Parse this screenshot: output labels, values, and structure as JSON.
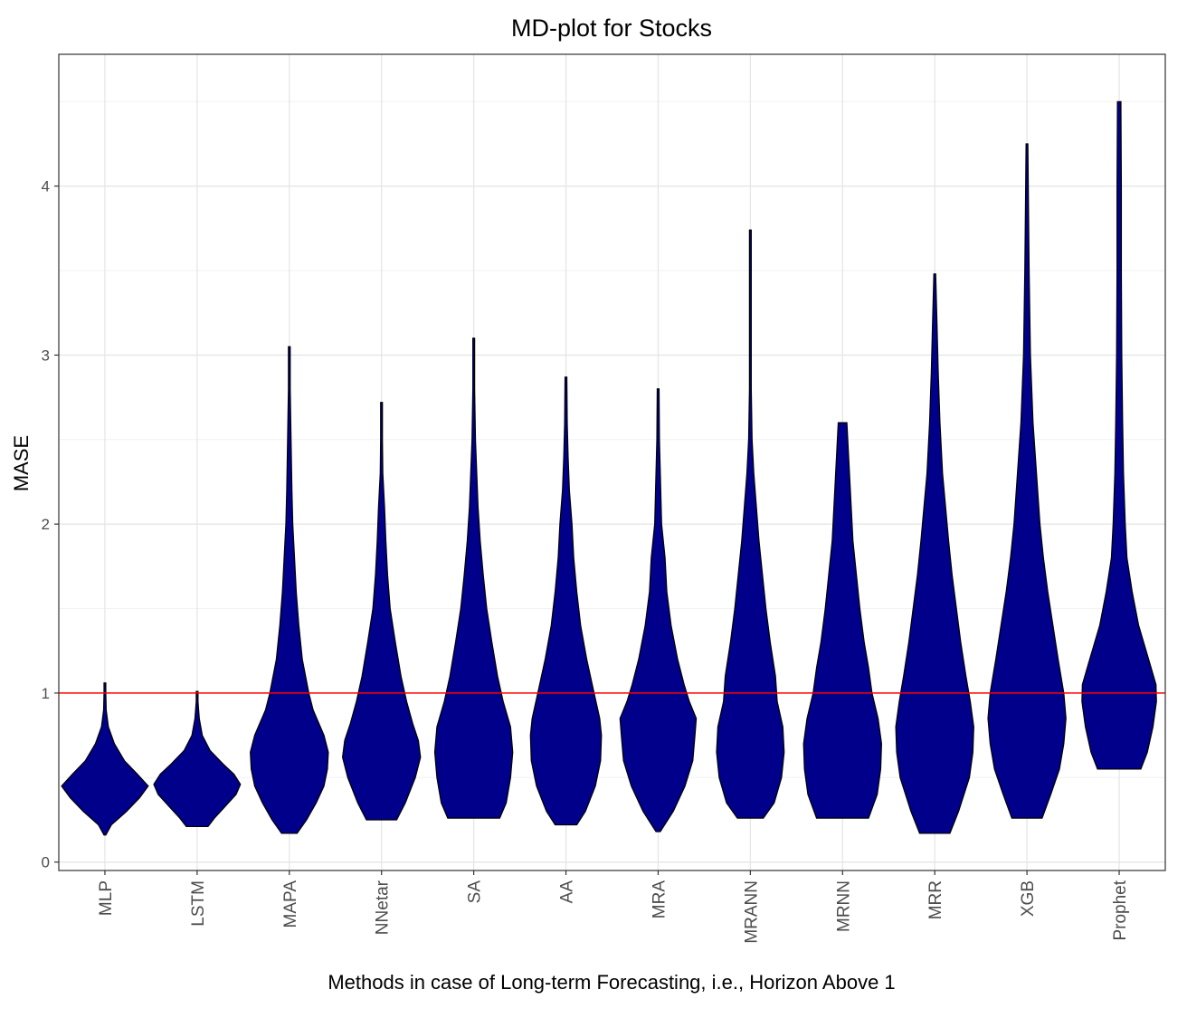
{
  "chart_data": {
    "type": "violin",
    "title": "MD-plot for Stocks",
    "xlabel": "Methods in case of Long-term Forecasting, i.e., Horizon Above 1",
    "ylabel": "MASE",
    "ylim": [
      -0.05,
      4.78
    ],
    "yticks": [
      0,
      1,
      2,
      3,
      4
    ],
    "reference_line": {
      "value": 1,
      "color": "#ff0000"
    },
    "grid": true,
    "fill_color": "#00008b",
    "categories": [
      "MLP",
      "LSTM",
      "MAPA",
      "NNetar",
      "SA",
      "AA",
      "MRA",
      "MRANN",
      "MRNN",
      "MRR",
      "XGB",
      "Prophet"
    ],
    "violins": [
      {
        "name": "MLP",
        "min": 0.16,
        "max": 1.06,
        "profile": [
          [
            0.16,
            0.02
          ],
          [
            0.22,
            0.15
          ],
          [
            0.3,
            0.5
          ],
          [
            0.38,
            0.8
          ],
          [
            0.45,
            1.0
          ],
          [
            0.52,
            0.75
          ],
          [
            0.6,
            0.45
          ],
          [
            0.7,
            0.22
          ],
          [
            0.8,
            0.08
          ],
          [
            0.9,
            0.03
          ],
          [
            1.0,
            0.02
          ],
          [
            1.06,
            0.01
          ]
        ]
      },
      {
        "name": "LSTM",
        "min": 0.21,
        "max": 1.01,
        "profile": [
          [
            0.21,
            0.25
          ],
          [
            0.26,
            0.4
          ],
          [
            0.33,
            0.65
          ],
          [
            0.4,
            0.9
          ],
          [
            0.46,
            1.0
          ],
          [
            0.52,
            0.85
          ],
          [
            0.58,
            0.6
          ],
          [
            0.66,
            0.3
          ],
          [
            0.75,
            0.12
          ],
          [
            0.85,
            0.05
          ],
          [
            0.95,
            0.02
          ],
          [
            1.01,
            0.01
          ]
        ]
      },
      {
        "name": "MAPA",
        "min": 0.17,
        "max": 3.05,
        "profile": [
          [
            0.17,
            0.18
          ],
          [
            0.25,
            0.4
          ],
          [
            0.35,
            0.62
          ],
          [
            0.45,
            0.8
          ],
          [
            0.55,
            0.88
          ],
          [
            0.65,
            0.9
          ],
          [
            0.75,
            0.8
          ],
          [
            0.9,
            0.55
          ],
          [
            1.0,
            0.45
          ],
          [
            1.2,
            0.3
          ],
          [
            1.4,
            0.22
          ],
          [
            1.6,
            0.16
          ],
          [
            1.8,
            0.12
          ],
          [
            2.0,
            0.08
          ],
          [
            2.2,
            0.06
          ],
          [
            2.5,
            0.04
          ],
          [
            2.8,
            0.02
          ],
          [
            3.05,
            0.01
          ]
        ]
      },
      {
        "name": "NNetar",
        "min": 0.25,
        "max": 2.72,
        "profile": [
          [
            0.25,
            0.35
          ],
          [
            0.35,
            0.55
          ],
          [
            0.5,
            0.78
          ],
          [
            0.62,
            0.9
          ],
          [
            0.72,
            0.85
          ],
          [
            0.82,
            0.72
          ],
          [
            0.95,
            0.58
          ],
          [
            1.1,
            0.45
          ],
          [
            1.3,
            0.32
          ],
          [
            1.5,
            0.2
          ],
          [
            1.7,
            0.14
          ],
          [
            1.9,
            0.1
          ],
          [
            2.1,
            0.07
          ],
          [
            2.3,
            0.03
          ],
          [
            2.5,
            0.02
          ],
          [
            2.72,
            0.01
          ]
        ]
      },
      {
        "name": "SA",
        "min": 0.26,
        "max": 3.1,
        "profile": [
          [
            0.26,
            0.6
          ],
          [
            0.35,
            0.75
          ],
          [
            0.5,
            0.85
          ],
          [
            0.65,
            0.9
          ],
          [
            0.8,
            0.85
          ],
          [
            0.95,
            0.68
          ],
          [
            1.1,
            0.55
          ],
          [
            1.3,
            0.42
          ],
          [
            1.5,
            0.3
          ],
          [
            1.7,
            0.22
          ],
          [
            1.9,
            0.15
          ],
          [
            2.1,
            0.1
          ],
          [
            2.3,
            0.07
          ],
          [
            2.5,
            0.04
          ],
          [
            2.8,
            0.02
          ],
          [
            3.1,
            0.01
          ]
        ]
      },
      {
        "name": "AA",
        "min": 0.22,
        "max": 2.87,
        "profile": [
          [
            0.22,
            0.25
          ],
          [
            0.3,
            0.45
          ],
          [
            0.45,
            0.68
          ],
          [
            0.6,
            0.8
          ],
          [
            0.75,
            0.82
          ],
          [
            0.85,
            0.78
          ],
          [
            1.0,
            0.65
          ],
          [
            1.2,
            0.48
          ],
          [
            1.4,
            0.34
          ],
          [
            1.6,
            0.25
          ],
          [
            1.8,
            0.18
          ],
          [
            2.0,
            0.14
          ],
          [
            2.2,
            0.08
          ],
          [
            2.4,
            0.05
          ],
          [
            2.6,
            0.03
          ],
          [
            2.87,
            0.01
          ]
        ]
      },
      {
        "name": "MRA",
        "min": 0.18,
        "max": 2.8,
        "profile": [
          [
            0.18,
            0.05
          ],
          [
            0.3,
            0.35
          ],
          [
            0.45,
            0.62
          ],
          [
            0.6,
            0.8
          ],
          [
            0.75,
            0.85
          ],
          [
            0.85,
            0.88
          ],
          [
            0.95,
            0.72
          ],
          [
            1.05,
            0.6
          ],
          [
            1.2,
            0.45
          ],
          [
            1.4,
            0.3
          ],
          [
            1.6,
            0.2
          ],
          [
            1.8,
            0.16
          ],
          [
            2.0,
            0.08
          ],
          [
            2.2,
            0.06
          ],
          [
            2.5,
            0.03
          ],
          [
            2.8,
            0.01
          ]
        ]
      },
      {
        "name": "MRANN",
        "min": 0.26,
        "max": 3.74,
        "profile": [
          [
            0.26,
            0.3
          ],
          [
            0.35,
            0.55
          ],
          [
            0.5,
            0.72
          ],
          [
            0.65,
            0.78
          ],
          [
            0.8,
            0.75
          ],
          [
            0.95,
            0.62
          ],
          [
            1.1,
            0.58
          ],
          [
            1.3,
            0.46
          ],
          [
            1.5,
            0.36
          ],
          [
            1.7,
            0.28
          ],
          [
            1.9,
            0.2
          ],
          [
            2.1,
            0.14
          ],
          [
            2.3,
            0.08
          ],
          [
            2.5,
            0.04
          ],
          [
            2.8,
            0.02
          ],
          [
            3.2,
            0.015
          ],
          [
            3.74,
            0.01
          ]
        ]
      },
      {
        "name": "MRNN",
        "min": 0.26,
        "max": 2.6,
        "profile": [
          [
            0.26,
            0.6
          ],
          [
            0.4,
            0.8
          ],
          [
            0.55,
            0.88
          ],
          [
            0.7,
            0.9
          ],
          [
            0.85,
            0.82
          ],
          [
            1.0,
            0.68
          ],
          [
            1.15,
            0.6
          ],
          [
            1.3,
            0.5
          ],
          [
            1.5,
            0.4
          ],
          [
            1.7,
            0.32
          ],
          [
            1.9,
            0.24
          ],
          [
            2.1,
            0.2
          ],
          [
            2.3,
            0.16
          ],
          [
            2.5,
            0.12
          ],
          [
            2.6,
            0.1
          ]
        ]
      },
      {
        "name": "MRR",
        "min": 0.17,
        "max": 3.48,
        "profile": [
          [
            0.17,
            0.35
          ],
          [
            0.3,
            0.55
          ],
          [
            0.5,
            0.8
          ],
          [
            0.65,
            0.88
          ],
          [
            0.8,
            0.9
          ],
          [
            0.95,
            0.82
          ],
          [
            1.1,
            0.72
          ],
          [
            1.3,
            0.6
          ],
          [
            1.5,
            0.5
          ],
          [
            1.7,
            0.4
          ],
          [
            1.9,
            0.32
          ],
          [
            2.1,
            0.25
          ],
          [
            2.3,
            0.18
          ],
          [
            2.6,
            0.12
          ],
          [
            2.9,
            0.08
          ],
          [
            3.2,
            0.05
          ],
          [
            3.48,
            0.02
          ]
        ]
      },
      {
        "name": "XGB",
        "min": 0.26,
        "max": 4.25,
        "profile": [
          [
            0.26,
            0.35
          ],
          [
            0.4,
            0.55
          ],
          [
            0.55,
            0.75
          ],
          [
            0.7,
            0.85
          ],
          [
            0.85,
            0.9
          ],
          [
            1.0,
            0.85
          ],
          [
            1.2,
            0.72
          ],
          [
            1.4,
            0.6
          ],
          [
            1.6,
            0.48
          ],
          [
            1.8,
            0.38
          ],
          [
            2.0,
            0.3
          ],
          [
            2.3,
            0.22
          ],
          [
            2.6,
            0.14
          ],
          [
            3.0,
            0.08
          ],
          [
            3.5,
            0.05
          ],
          [
            4.0,
            0.03
          ],
          [
            4.25,
            0.02
          ]
        ]
      },
      {
        "name": "Prophet",
        "min": 0.55,
        "max": 4.5,
        "profile": [
          [
            0.55,
            0.5
          ],
          [
            0.65,
            0.65
          ],
          [
            0.8,
            0.78
          ],
          [
            0.95,
            0.86
          ],
          [
            1.05,
            0.85
          ],
          [
            1.2,
            0.68
          ],
          [
            1.4,
            0.45
          ],
          [
            1.6,
            0.3
          ],
          [
            1.8,
            0.18
          ],
          [
            2.0,
            0.14
          ],
          [
            2.3,
            0.1
          ],
          [
            2.6,
            0.08
          ],
          [
            3.0,
            0.06
          ],
          [
            3.5,
            0.05
          ],
          [
            4.0,
            0.05
          ],
          [
            4.5,
            0.04
          ]
        ]
      }
    ]
  }
}
